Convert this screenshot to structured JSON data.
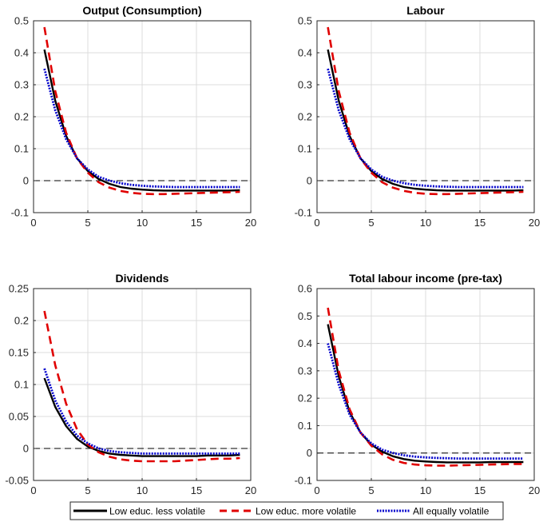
{
  "chart_data": [
    {
      "type": "line",
      "title": "Output (Consumption)",
      "xlim": [
        0,
        20
      ],
      "ylim": [
        -0.1,
        0.5
      ],
      "xticks": [
        0,
        5,
        10,
        15,
        20
      ],
      "xtick_labels": [
        "0",
        "5",
        "10",
        "15",
        "20"
      ],
      "yticks": [
        -0.1,
        0,
        0.1,
        0.2,
        0.3,
        0.4,
        0.5
      ],
      "ytick_labels": [
        "-0.1",
        "0",
        "0.1",
        "0.2",
        "0.3",
        "0.4",
        "0.5"
      ],
      "grid": true,
      "x": [
        1,
        2,
        3,
        4,
        5,
        6,
        7,
        8,
        9,
        10,
        11,
        12,
        13,
        14,
        15,
        16,
        17,
        18,
        19
      ],
      "series": [
        {
          "name": "Low educ. less volatile",
          "values": [
            0.41,
            0.25,
            0.14,
            0.07,
            0.03,
            0.005,
            -0.01,
            -0.02,
            -0.025,
            -0.028,
            -0.03,
            -0.031,
            -0.031,
            -0.031,
            -0.031,
            -0.031,
            -0.031,
            -0.031,
            -0.03
          ]
        },
        {
          "name": "Low educ. more volatile",
          "values": [
            0.48,
            0.28,
            0.15,
            0.07,
            0.025,
            -0.005,
            -0.022,
            -0.032,
            -0.038,
            -0.041,
            -0.042,
            -0.042,
            -0.041,
            -0.04,
            -0.039,
            -0.038,
            -0.037,
            -0.036,
            -0.035
          ]
        },
        {
          "name": "All equally volatile",
          "values": [
            0.35,
            0.22,
            0.13,
            0.07,
            0.035,
            0.012,
            0.0,
            -0.008,
            -0.013,
            -0.016,
            -0.018,
            -0.019,
            -0.02,
            -0.02,
            -0.02,
            -0.02,
            -0.02,
            -0.02,
            -0.02
          ]
        }
      ]
    },
    {
      "type": "line",
      "title": "Labour",
      "xlim": [
        0,
        20
      ],
      "ylim": [
        -0.1,
        0.5
      ],
      "xticks": [
        0,
        5,
        10,
        15,
        20
      ],
      "xtick_labels": [
        "0",
        "5",
        "10",
        "15",
        "20"
      ],
      "yticks": [
        -0.1,
        0,
        0.1,
        0.2,
        0.3,
        0.4,
        0.5
      ],
      "ytick_labels": [
        "-0.1",
        "0",
        "0.1",
        "0.2",
        "0.3",
        "0.4",
        "0.5"
      ],
      "grid": true,
      "x": [
        1,
        2,
        3,
        4,
        5,
        6,
        7,
        8,
        9,
        10,
        11,
        12,
        13,
        14,
        15,
        16,
        17,
        18,
        19
      ],
      "series": [
        {
          "name": "Low educ. less volatile",
          "values": [
            0.41,
            0.25,
            0.14,
            0.07,
            0.03,
            0.005,
            -0.01,
            -0.02,
            -0.025,
            -0.028,
            -0.03,
            -0.031,
            -0.031,
            -0.031,
            -0.031,
            -0.031,
            -0.031,
            -0.031,
            -0.03
          ]
        },
        {
          "name": "Low educ. more volatile",
          "values": [
            0.48,
            0.28,
            0.15,
            0.07,
            0.025,
            -0.005,
            -0.022,
            -0.032,
            -0.038,
            -0.041,
            -0.042,
            -0.042,
            -0.041,
            -0.04,
            -0.039,
            -0.038,
            -0.037,
            -0.036,
            -0.035
          ]
        },
        {
          "name": "All equally volatile",
          "values": [
            0.35,
            0.22,
            0.13,
            0.07,
            0.035,
            0.012,
            0.0,
            -0.008,
            -0.013,
            -0.016,
            -0.018,
            -0.019,
            -0.02,
            -0.02,
            -0.02,
            -0.02,
            -0.02,
            -0.02,
            -0.02
          ]
        }
      ]
    },
    {
      "type": "line",
      "title": "Dividends",
      "xlim": [
        0,
        20
      ],
      "ylim": [
        -0.05,
        0.25
      ],
      "xticks": [
        0,
        5,
        10,
        15,
        20
      ],
      "xtick_labels": [
        "0",
        "5",
        "10",
        "15",
        "20"
      ],
      "yticks": [
        -0.05,
        0,
        0.05,
        0.1,
        0.15,
        0.2,
        0.25
      ],
      "ytick_labels": [
        "-0.05",
        "0",
        "0.05",
        "0.1",
        "0.15",
        "0.2",
        "0.25"
      ],
      "grid": true,
      "x": [
        1,
        2,
        3,
        4,
        5,
        6,
        7,
        8,
        9,
        10,
        11,
        12,
        13,
        14,
        15,
        16,
        17,
        18,
        19
      ],
      "series": [
        {
          "name": "Low educ. less volatile",
          "values": [
            0.11,
            0.065,
            0.035,
            0.015,
            0.003,
            -0.004,
            -0.008,
            -0.01,
            -0.011,
            -0.012,
            -0.012,
            -0.012,
            -0.012,
            -0.012,
            -0.012,
            -0.011,
            -0.011,
            -0.011,
            -0.01
          ]
        },
        {
          "name": "Low educ. more volatile",
          "values": [
            0.215,
            0.13,
            0.07,
            0.03,
            0.006,
            -0.006,
            -0.013,
            -0.017,
            -0.019,
            -0.02,
            -0.02,
            -0.02,
            -0.02,
            -0.019,
            -0.018,
            -0.017,
            -0.016,
            -0.016,
            -0.015
          ]
        },
        {
          "name": "All equally volatile",
          "values": [
            0.125,
            0.075,
            0.042,
            0.02,
            0.008,
            0.0,
            -0.004,
            -0.006,
            -0.007,
            -0.008,
            -0.008,
            -0.008,
            -0.008,
            -0.008,
            -0.008,
            -0.008,
            -0.008,
            -0.008,
            -0.008
          ]
        }
      ]
    },
    {
      "type": "line",
      "title": "Total labour income (pre-tax)",
      "xlim": [
        0,
        20
      ],
      "ylim": [
        -0.1,
        0.6
      ],
      "xticks": [
        0,
        5,
        10,
        15,
        20
      ],
      "xtick_labels": [
        "0",
        "5",
        "10",
        "15",
        "20"
      ],
      "yticks": [
        -0.1,
        0,
        0.1,
        0.2,
        0.3,
        0.4,
        0.5,
        0.6
      ],
      "ytick_labels": [
        "-0.1",
        "0",
        "0.1",
        "0.2",
        "0.3",
        "0.4",
        "0.5",
        "0.6"
      ],
      "grid": true,
      "x": [
        1,
        2,
        3,
        4,
        5,
        6,
        7,
        8,
        9,
        10,
        11,
        12,
        13,
        14,
        15,
        16,
        17,
        18,
        19
      ],
      "series": [
        {
          "name": "Low educ. less volatile",
          "values": [
            0.47,
            0.28,
            0.15,
            0.075,
            0.03,
            0.005,
            -0.012,
            -0.022,
            -0.028,
            -0.031,
            -0.033,
            -0.034,
            -0.034,
            -0.034,
            -0.034,
            -0.033,
            -0.033,
            -0.033,
            -0.033
          ]
        },
        {
          "name": "Low educ. more volatile",
          "values": [
            0.53,
            0.3,
            0.16,
            0.075,
            0.027,
            -0.005,
            -0.025,
            -0.036,
            -0.042,
            -0.045,
            -0.046,
            -0.046,
            -0.045,
            -0.044,
            -0.043,
            -0.042,
            -0.041,
            -0.04,
            -0.04
          ]
        },
        {
          "name": "All equally volatile",
          "values": [
            0.4,
            0.25,
            0.14,
            0.075,
            0.035,
            0.012,
            0.0,
            -0.008,
            -0.013,
            -0.016,
            -0.018,
            -0.019,
            -0.02,
            -0.02,
            -0.02,
            -0.02,
            -0.02,
            -0.02,
            -0.02
          ]
        }
      ]
    }
  ],
  "legend": {
    "placement": "bottom",
    "items": [
      {
        "label": "Low educ. less volatile",
        "color": "#000000",
        "style": "solid"
      },
      {
        "label": "Low educ. more volatile",
        "color": "#e00000",
        "style": "dashed"
      },
      {
        "label": "All equally volatile",
        "color": "#0000cc",
        "style": "dotted"
      }
    ]
  },
  "colors": {
    "series": [
      "#000000",
      "#e00000",
      "#0000cc"
    ],
    "zero_line": "#000000",
    "grid": "#dcdcdc",
    "axes": "#262626"
  }
}
